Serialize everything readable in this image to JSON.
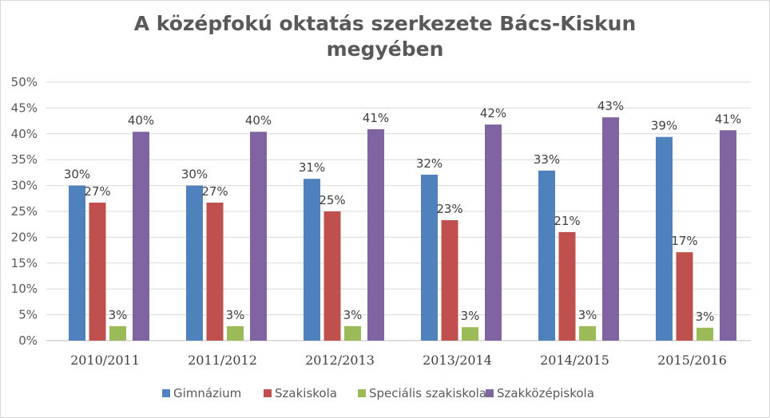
{
  "chart_data": {
    "type": "bar",
    "title_lines": [
      "A középfokú oktatás szerkezete Bács-Kiskun",
      "megyében"
    ],
    "xlabel": "",
    "ylabel": "",
    "ylim": [
      0,
      50
    ],
    "yticks": [
      "0%",
      "5%",
      "10%",
      "15%",
      "20%",
      "25%",
      "30%",
      "35%",
      "40%",
      "45%",
      "50%"
    ],
    "grid": true,
    "legend_position": "bottom",
    "categories": [
      "2010/2011",
      "2011/2012",
      "2012/2013",
      "2013/2014",
      "2014/2015",
      "2015/2016"
    ],
    "series": [
      {
        "name": "Gimnázium",
        "color": "#4f81bd",
        "values": [
          30,
          30,
          31.3,
          32.1,
          32.9,
          39.4
        ],
        "labels": [
          "30%",
          "30%",
          "31%",
          "32%",
          "33%",
          "39%"
        ]
      },
      {
        "name": "Szakiskola",
        "color": "#c0504d",
        "values": [
          26.7,
          26.7,
          25,
          23.3,
          21,
          17.1
        ],
        "labels": [
          "27%",
          "27%",
          "25%",
          "23%",
          "21%",
          "17%"
        ]
      },
      {
        "name": "Speciális szakiskola",
        "color": "#9bbb59",
        "values": [
          2.8,
          2.8,
          2.8,
          2.6,
          2.8,
          2.5
        ],
        "labels": [
          "3%",
          "3%",
          "3%",
          "3%",
          "3%",
          "3%"
        ]
      },
      {
        "name": "Szakközépiskola",
        "color": "#8064a2",
        "values": [
          40.4,
          40.4,
          40.9,
          41.8,
          43.2,
          40.7
        ],
        "labels": [
          "40%",
          "40%",
          "41%",
          "42%",
          "43%",
          "41%"
        ]
      }
    ]
  }
}
